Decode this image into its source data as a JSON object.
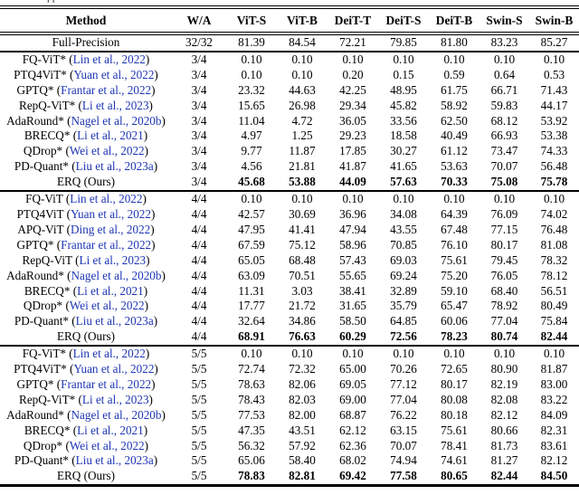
{
  "page": {
    "clipped_caption_fragment": "the appendix",
    "link_color": "#1f36b4",
    "rule_color": "#000000"
  },
  "table": {
    "columns": [
      "Method",
      "W/A",
      "ViT-S",
      "ViT-B",
      "DeiT-T",
      "DeiT-S",
      "DeiT-B",
      "Swin-S",
      "Swin-B"
    ],
    "full_precision": {
      "method": "Full-Precision",
      "wa": "32/32",
      "values": [
        "81.39",
        "84.54",
        "72.21",
        "79.85",
        "81.80",
        "83.23",
        "85.27"
      ]
    },
    "groups": [
      {
        "wa": "3/4",
        "rows": [
          {
            "method": "FQ-ViT*",
            "citation": "Lin et al., 2022",
            "values": [
              "0.10",
              "0.10",
              "0.10",
              "0.10",
              "0.10",
              "0.10",
              "0.10"
            ],
            "bold": false
          },
          {
            "method": "PTQ4ViT*",
            "citation": "Yuan et al., 2022",
            "values": [
              "0.10",
              "0.10",
              "0.20",
              "0.15",
              "0.59",
              "0.64",
              "0.53"
            ],
            "bold": false
          },
          {
            "method": "GPTQ*",
            "citation": "Frantar et al., 2022",
            "values": [
              "23.32",
              "44.63",
              "42.25",
              "48.95",
              "61.75",
              "66.71",
              "71.43"
            ],
            "bold": false
          },
          {
            "method": "RepQ-ViT*",
            "citation": "Li et al., 2023",
            "values": [
              "15.65",
              "26.98",
              "29.34",
              "45.82",
              "58.92",
              "59.83",
              "44.17"
            ],
            "bold": false
          },
          {
            "method": "AdaRound*",
            "citation": "Nagel et al., 2020b",
            "values": [
              "11.04",
              "4.72",
              "36.05",
              "33.56",
              "62.50",
              "68.12",
              "53.92"
            ],
            "bold": false
          },
          {
            "method": "BRECQ*",
            "citation": "Li et al., 2021",
            "values": [
              "4.97",
              "1.25",
              "29.23",
              "18.58",
              "40.49",
              "66.93",
              "53.38"
            ],
            "bold": false
          },
          {
            "method": "QDrop*",
            "citation": "Wei et al., 2022",
            "values": [
              "9.77",
              "11.87",
              "17.85",
              "30.27",
              "61.12",
              "73.47",
              "74.33"
            ],
            "bold": false
          },
          {
            "method": "PD-Quant*",
            "citation": "Liu et al., 2023a",
            "values": [
              "4.56",
              "21.81",
              "41.87",
              "41.65",
              "53.63",
              "70.07",
              "56.48"
            ],
            "bold": false
          },
          {
            "method": "ERQ (Ours)",
            "citation": null,
            "values": [
              "45.68",
              "53.88",
              "44.09",
              "57.63",
              "70.33",
              "75.08",
              "75.78"
            ],
            "bold": true
          }
        ]
      },
      {
        "wa": "4/4",
        "rows": [
          {
            "method": "FQ-ViT",
            "citation": "Lin et al., 2022",
            "values": [
              "0.10",
              "0.10",
              "0.10",
              "0.10",
              "0.10",
              "0.10",
              "0.10"
            ],
            "bold": false
          },
          {
            "method": "PTQ4ViT",
            "citation": "Yuan et al., 2022",
            "values": [
              "42.57",
              "30.69",
              "36.96",
              "34.08",
              "64.39",
              "76.09",
              "74.02"
            ],
            "bold": false
          },
          {
            "method": "APQ-ViT",
            "citation": "Ding et al., 2022",
            "values": [
              "47.95",
              "41.41",
              "47.94",
              "43.55",
              "67.48",
              "77.15",
              "76.48"
            ],
            "bold": false
          },
          {
            "method": "GPTQ*",
            "citation": "Frantar et al., 2022",
            "values": [
              "67.59",
              "75.12",
              "58.96",
              "70.85",
              "76.10",
              "80.17",
              "81.08"
            ],
            "bold": false
          },
          {
            "method": "RepQ-ViT",
            "citation": "Li et al., 2023",
            "values": [
              "65.05",
              "68.48",
              "57.43",
              "69.03",
              "75.61",
              "79.45",
              "78.32"
            ],
            "bold": false
          },
          {
            "method": "AdaRound*",
            "citation": "Nagel et al., 2020b",
            "values": [
              "63.09",
              "70.51",
              "55.65",
              "69.24",
              "75.20",
              "76.05",
              "78.12"
            ],
            "bold": false
          },
          {
            "method": "BRECQ*",
            "citation": "Li et al., 2021",
            "values": [
              "11.31",
              "3.03",
              "38.41",
              "32.89",
              "59.10",
              "68.40",
              "56.51"
            ],
            "bold": false
          },
          {
            "method": "QDrop*",
            "citation": "Wei et al., 2022",
            "values": [
              "17.77",
              "21.72",
              "31.65",
              "35.79",
              "65.47",
              "78.92",
              "80.49"
            ],
            "bold": false
          },
          {
            "method": "PD-Quant*",
            "citation": "Liu et al., 2023a",
            "values": [
              "32.64",
              "34.86",
              "58.50",
              "64.85",
              "60.06",
              "77.04",
              "75.84"
            ],
            "bold": false
          },
          {
            "method": "ERQ (Ours)",
            "citation": null,
            "values": [
              "68.91",
              "76.63",
              "60.29",
              "72.56",
              "78.23",
              "80.74",
              "82.44"
            ],
            "bold": true
          }
        ]
      },
      {
        "wa": "5/5",
        "rows": [
          {
            "method": "FQ-ViT*",
            "citation": "Lin et al., 2022",
            "values": [
              "0.10",
              "0.10",
              "0.10",
              "0.10",
              "0.10",
              "0.10",
              "0.10"
            ],
            "bold": false
          },
          {
            "method": "PTQ4ViT*",
            "citation": "Yuan et al., 2022",
            "values": [
              "72.74",
              "72.32",
              "65.00",
              "70.26",
              "72.65",
              "80.90",
              "81.87"
            ],
            "bold": false
          },
          {
            "method": "GPTQ*",
            "citation": "Frantar et al., 2022",
            "values": [
              "78.63",
              "82.06",
              "69.05",
              "77.12",
              "80.17",
              "82.19",
              "83.00"
            ],
            "bold": false
          },
          {
            "method": "RepQ-ViT*",
            "citation": "Li et al., 2023",
            "values": [
              "78.43",
              "82.03",
              "69.00",
              "77.04",
              "80.08",
              "82.08",
              "83.22"
            ],
            "bold": false
          },
          {
            "method": "AdaRound*",
            "citation": "Nagel et al., 2020b",
            "values": [
              "77.53",
              "82.00",
              "68.87",
              "76.22",
              "80.18",
              "82.12",
              "84.09"
            ],
            "bold": false
          },
          {
            "method": "BRECQ*",
            "citation": "Li et al., 2021",
            "values": [
              "47.35",
              "43.51",
              "62.12",
              "63.15",
              "75.61",
              "80.66",
              "82.31"
            ],
            "bold": false
          },
          {
            "method": "QDrop*",
            "citation": "Wei et al., 2022",
            "values": [
              "56.32",
              "57.92",
              "62.36",
              "70.07",
              "78.41",
              "81.73",
              "83.61"
            ],
            "bold": false
          },
          {
            "method": "PD-Quant*",
            "citation": "Liu et al., 2023a",
            "values": [
              "65.06",
              "58.40",
              "68.02",
              "74.94",
              "74.61",
              "81.27",
              "82.12"
            ],
            "bold": false
          },
          {
            "method": "ERQ (Ours)",
            "citation": null,
            "values": [
              "78.83",
              "82.81",
              "69.42",
              "77.58",
              "80.65",
              "82.44",
              "84.50"
            ],
            "bold": true
          }
        ]
      }
    ]
  }
}
